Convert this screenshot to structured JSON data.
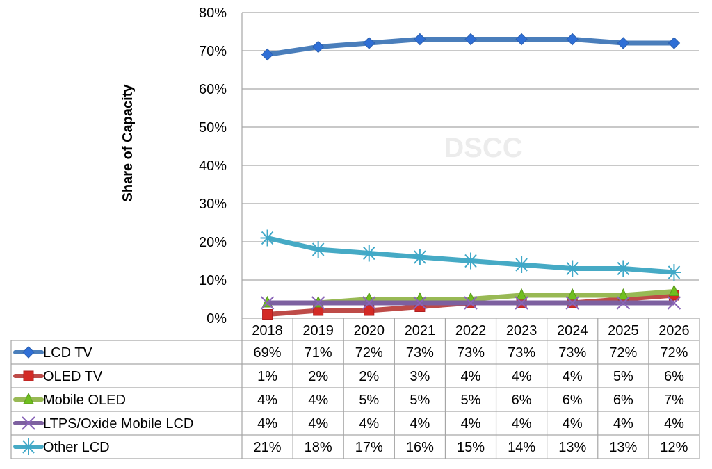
{
  "chart_data": {
    "type": "line",
    "title": "",
    "xlabel": "",
    "ylabel": "Share of Capacity",
    "watermark": "DSCC",
    "ylim": [
      0,
      80
    ],
    "yticks": [
      "0%",
      "10%",
      "20%",
      "30%",
      "40%",
      "50%",
      "60%",
      "70%",
      "80%"
    ],
    "grid": true,
    "legend": "data-table-left",
    "categories": [
      "2018",
      "2019",
      "2020",
      "2021",
      "2022",
      "2023",
      "2024",
      "2025",
      "2026"
    ],
    "series": [
      {
        "name": "LCD TV",
        "marker": "diamond",
        "color": "#4a7ebb",
        "values": [
          69,
          71,
          72,
          73,
          73,
          73,
          73,
          72,
          72
        ],
        "labels": [
          "69%",
          "71%",
          "72%",
          "73%",
          "73%",
          "73%",
          "73%",
          "72%",
          "72%"
        ]
      },
      {
        "name": "OLED TV",
        "marker": "square",
        "color": "#be4b48",
        "values": [
          1,
          2,
          2,
          3,
          4,
          4,
          4,
          5,
          6
        ],
        "labels": [
          "1%",
          "2%",
          "2%",
          "3%",
          "4%",
          "4%",
          "4%",
          "5%",
          "6%"
        ]
      },
      {
        "name": "Mobile OLED",
        "marker": "triangle",
        "color": "#98b954",
        "values": [
          4,
          4,
          5,
          5,
          5,
          6,
          6,
          6,
          7
        ],
        "labels": [
          "4%",
          "4%",
          "5%",
          "5%",
          "5%",
          "6%",
          "6%",
          "6%",
          "7%"
        ]
      },
      {
        "name": "LTPS/Oxide Mobile LCD",
        "marker": "x",
        "color": "#7d60a0",
        "values": [
          4,
          4,
          4,
          4,
          4,
          4,
          4,
          4,
          4
        ],
        "labels": [
          "4%",
          "4%",
          "4%",
          "4%",
          "4%",
          "4%",
          "4%",
          "4%",
          "4%"
        ]
      },
      {
        "name": "Other LCD",
        "marker": "star",
        "color": "#46aac5",
        "values": [
          21,
          18,
          17,
          16,
          15,
          14,
          13,
          13,
          12
        ],
        "labels": [
          "21%",
          "18%",
          "17%",
          "16%",
          "15%",
          "14%",
          "13%",
          "13%",
          "12%"
        ]
      }
    ]
  }
}
